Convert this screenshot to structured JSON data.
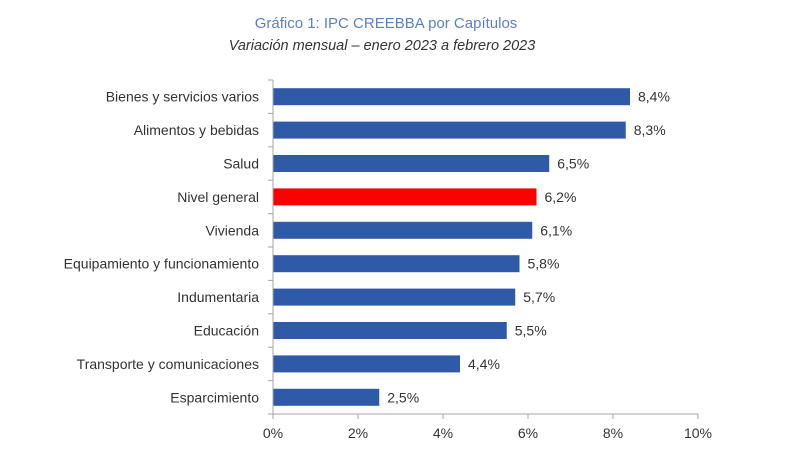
{
  "chart_data": {
    "type": "bar",
    "orientation": "horizontal",
    "title": "Gráfico 1: IPC CREEBBA por Capítulos",
    "subtitle": "Variación mensual – enero 2023 a febrero 2023",
    "categories": [
      "Bienes y servicios varios",
      "Alimentos y bebidas",
      "Salud",
      "Nivel general",
      "Vivienda",
      "Equipamiento y funcionamiento",
      "Indumentaria",
      "Educación",
      "Transporte y comunicaciones",
      "Esparcimiento"
    ],
    "values": [
      8.4,
      8.3,
      6.5,
      6.2,
      6.1,
      5.8,
      5.7,
      5.5,
      4.4,
      2.5
    ],
    "value_labels": [
      "8,4%",
      "8,3%",
      "6,5%",
      "6,2%",
      "6,1%",
      "5,8%",
      "5,7%",
      "5,5%",
      "4,4%",
      "2,5%"
    ],
    "highlight_index": 3,
    "xlim": [
      0,
      10
    ],
    "xticks": [
      0,
      2,
      4,
      6,
      8,
      10
    ],
    "xtick_labels": [
      "0%",
      "2%",
      "4%",
      "6%",
      "8%",
      "10%"
    ],
    "xlabel": "",
    "ylabel": "",
    "grid": false,
    "colors": {
      "bar": "#2e5aa8",
      "highlight": "#ff0000",
      "title": "#5b7fc4",
      "axis": "#a6a6a6"
    }
  }
}
